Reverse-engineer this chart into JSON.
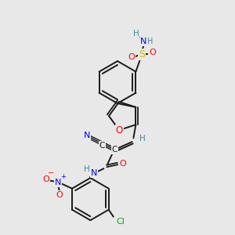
{
  "bg_color": "#e8e8e8",
  "bond_color": "#1a1a1a",
  "atom_colors": {
    "O": "#ff0000",
    "N": "#0000ff",
    "S": "#ccbb00",
    "Cl": "#00aa00",
    "H": "#448899",
    "C": "#1a1a1a"
  },
  "figsize": [
    3.0,
    3.0
  ],
  "dpi": 100
}
